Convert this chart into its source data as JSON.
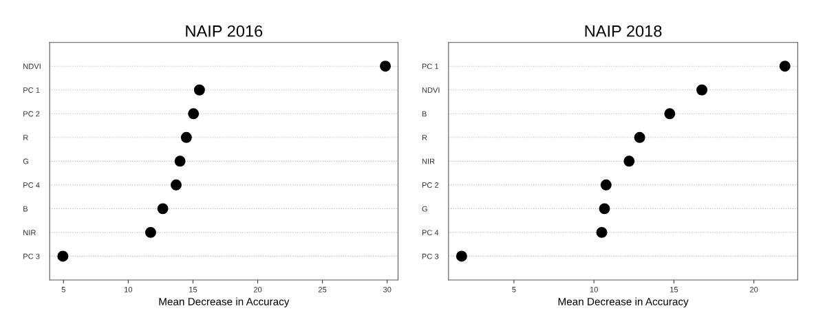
{
  "chart_data": [
    {
      "type": "scatter",
      "orientation": "horizontal",
      "title": "NAIP 2016",
      "xlabel": "Mean Decrease in Accuracy",
      "categories": [
        "NDVI",
        "PC 1",
        "PC 2",
        "R",
        "G",
        "PC 4",
        "B",
        "NIR",
        "PC 3"
      ],
      "values": [
        29.86,
        15.5,
        15.04,
        14.49,
        14.0,
        13.7,
        12.67,
        11.73,
        4.95
      ],
      "color": "#000000",
      "marker": "circle",
      "grid": "y",
      "xlim": [
        3.93,
        30.84
      ],
      "xticks": [
        5,
        10,
        15,
        20,
        25,
        30
      ]
    },
    {
      "type": "scatter",
      "orientation": "horizontal",
      "title": "NAIP 2018",
      "xlabel": "Mean Decrease in Accuracy",
      "categories": [
        "PC 1",
        "NDVI",
        "B",
        "R",
        "NIR",
        "PC 2",
        "G",
        "PC 4",
        "PC 3"
      ],
      "values": [
        21.94,
        16.75,
        14.74,
        12.86,
        12.2,
        10.76,
        10.66,
        10.49,
        1.73
      ],
      "color": "#000000",
      "marker": "circle",
      "grid": "y",
      "xlim": [
        0.91,
        22.74
      ],
      "xticks": [
        5,
        10,
        15,
        20
      ]
    }
  ]
}
